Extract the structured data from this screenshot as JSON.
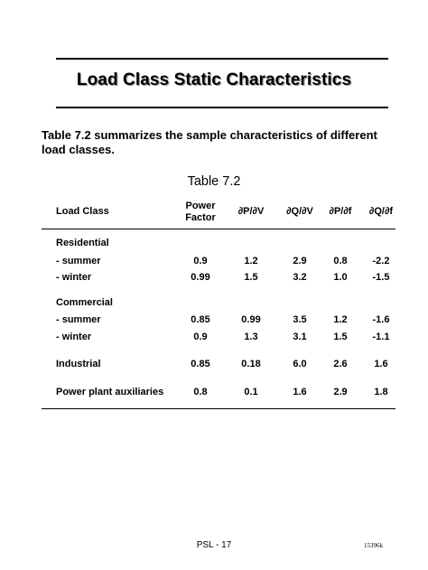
{
  "title": "Load Class Static Characteristics",
  "intro": "Table 7.2 summarizes the sample characteristics of different load classes.",
  "table_caption": "Table 7.2",
  "columns": {
    "load_class": "Load Class",
    "power_factor_1": "Power",
    "power_factor_2": "Factor",
    "dpdv": "∂P/∂V",
    "dqdv": "∂Q/∂V",
    "dpdf": "∂P/∂f",
    "dqdf": "∂Q/∂f"
  },
  "rows": [
    {
      "label": "Residential"
    },
    {
      "label": "- summer",
      "pf": "0.9",
      "dpdv": "1.2",
      "dqdv": "2.9",
      "dpdf": "0.8",
      "dqdf": "-2.2"
    },
    {
      "label": "- winter",
      "pf": "0.99",
      "dpdv": "1.5",
      "dqdv": "3.2",
      "dpdf": "1.0",
      "dqdf": "-1.5"
    },
    {
      "label": "Commercial"
    },
    {
      "label": "- summer",
      "pf": "0.85",
      "dpdv": "0.99",
      "dqdv": "3.5",
      "dpdf": "1.2",
      "dqdf": "-1.6"
    },
    {
      "label": "- winter",
      "pf": "0.9",
      "dpdv": "1.3",
      "dqdv": "3.1",
      "dpdf": "1.5",
      "dqdf": "-1.1"
    },
    {
      "label": "Industrial",
      "pf": "0.85",
      "dpdv": "0.18",
      "dqdv": "6.0",
      "dpdf": "2.6",
      "dqdf": "1.6"
    },
    {
      "label": "Power plant auxiliaries",
      "pf": "0.8",
      "dpdv": "0.1",
      "dqdv": "1.6",
      "dpdf": "2.9",
      "dqdf": "1.8"
    }
  ],
  "footer": {
    "page": "PSL - 17",
    "code": "15396k"
  }
}
